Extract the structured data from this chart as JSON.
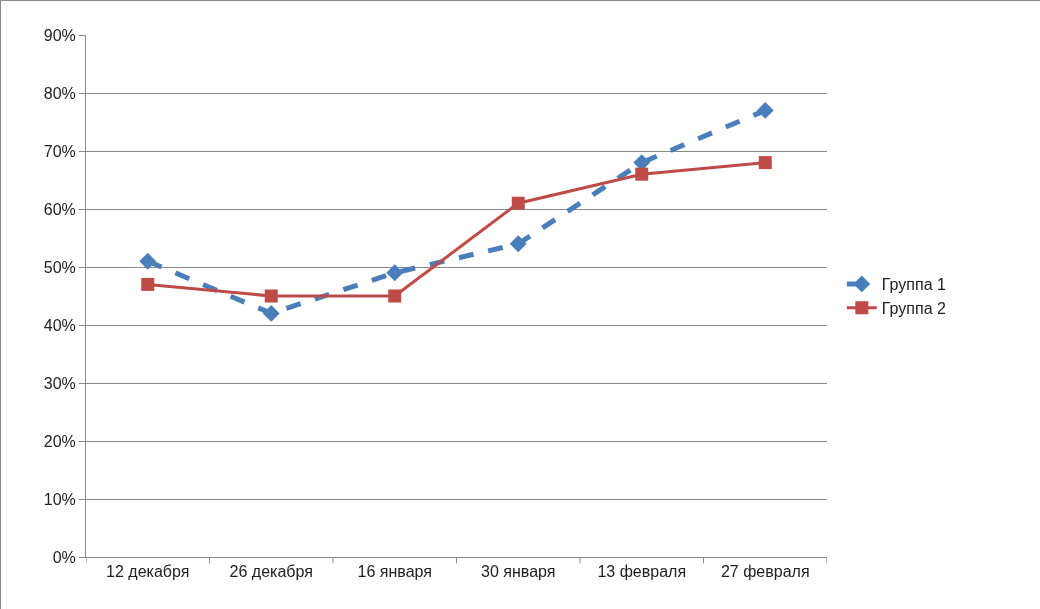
{
  "chart_data": {
    "type": "line",
    "categories": [
      "12 декабря",
      "26 декабря",
      "16 января",
      "30 января",
      "13 февраля",
      "27 февраля"
    ],
    "series": [
      {
        "name": "Группа 1",
        "color": "#4a7ebb",
        "marker": "diamond",
        "line_style": "dashed",
        "values": [
          51,
          42,
          49,
          54,
          68,
          77
        ]
      },
      {
        "name": "Группа 2",
        "color": "#be4b48",
        "marker": "square",
        "line_style": "solid",
        "values": [
          47,
          45,
          45,
          61,
          66,
          68
        ]
      }
    ],
    "ylim": [
      0,
      90
    ],
    "yticks": [
      {
        "value": 0,
        "label": "0%"
      },
      {
        "value": 10,
        "label": "10%"
      },
      {
        "value": 20,
        "label": "20%"
      },
      {
        "value": 30,
        "label": "30%"
      },
      {
        "value": 40,
        "label": "40%"
      },
      {
        "value": 50,
        "label": "50%"
      },
      {
        "value": 60,
        "label": "60%"
      },
      {
        "value": 70,
        "label": "70%"
      },
      {
        "value": 80,
        "label": "80%"
      },
      {
        "value": 90,
        "label": "90%"
      }
    ],
    "grid": "y",
    "legend": "right"
  }
}
